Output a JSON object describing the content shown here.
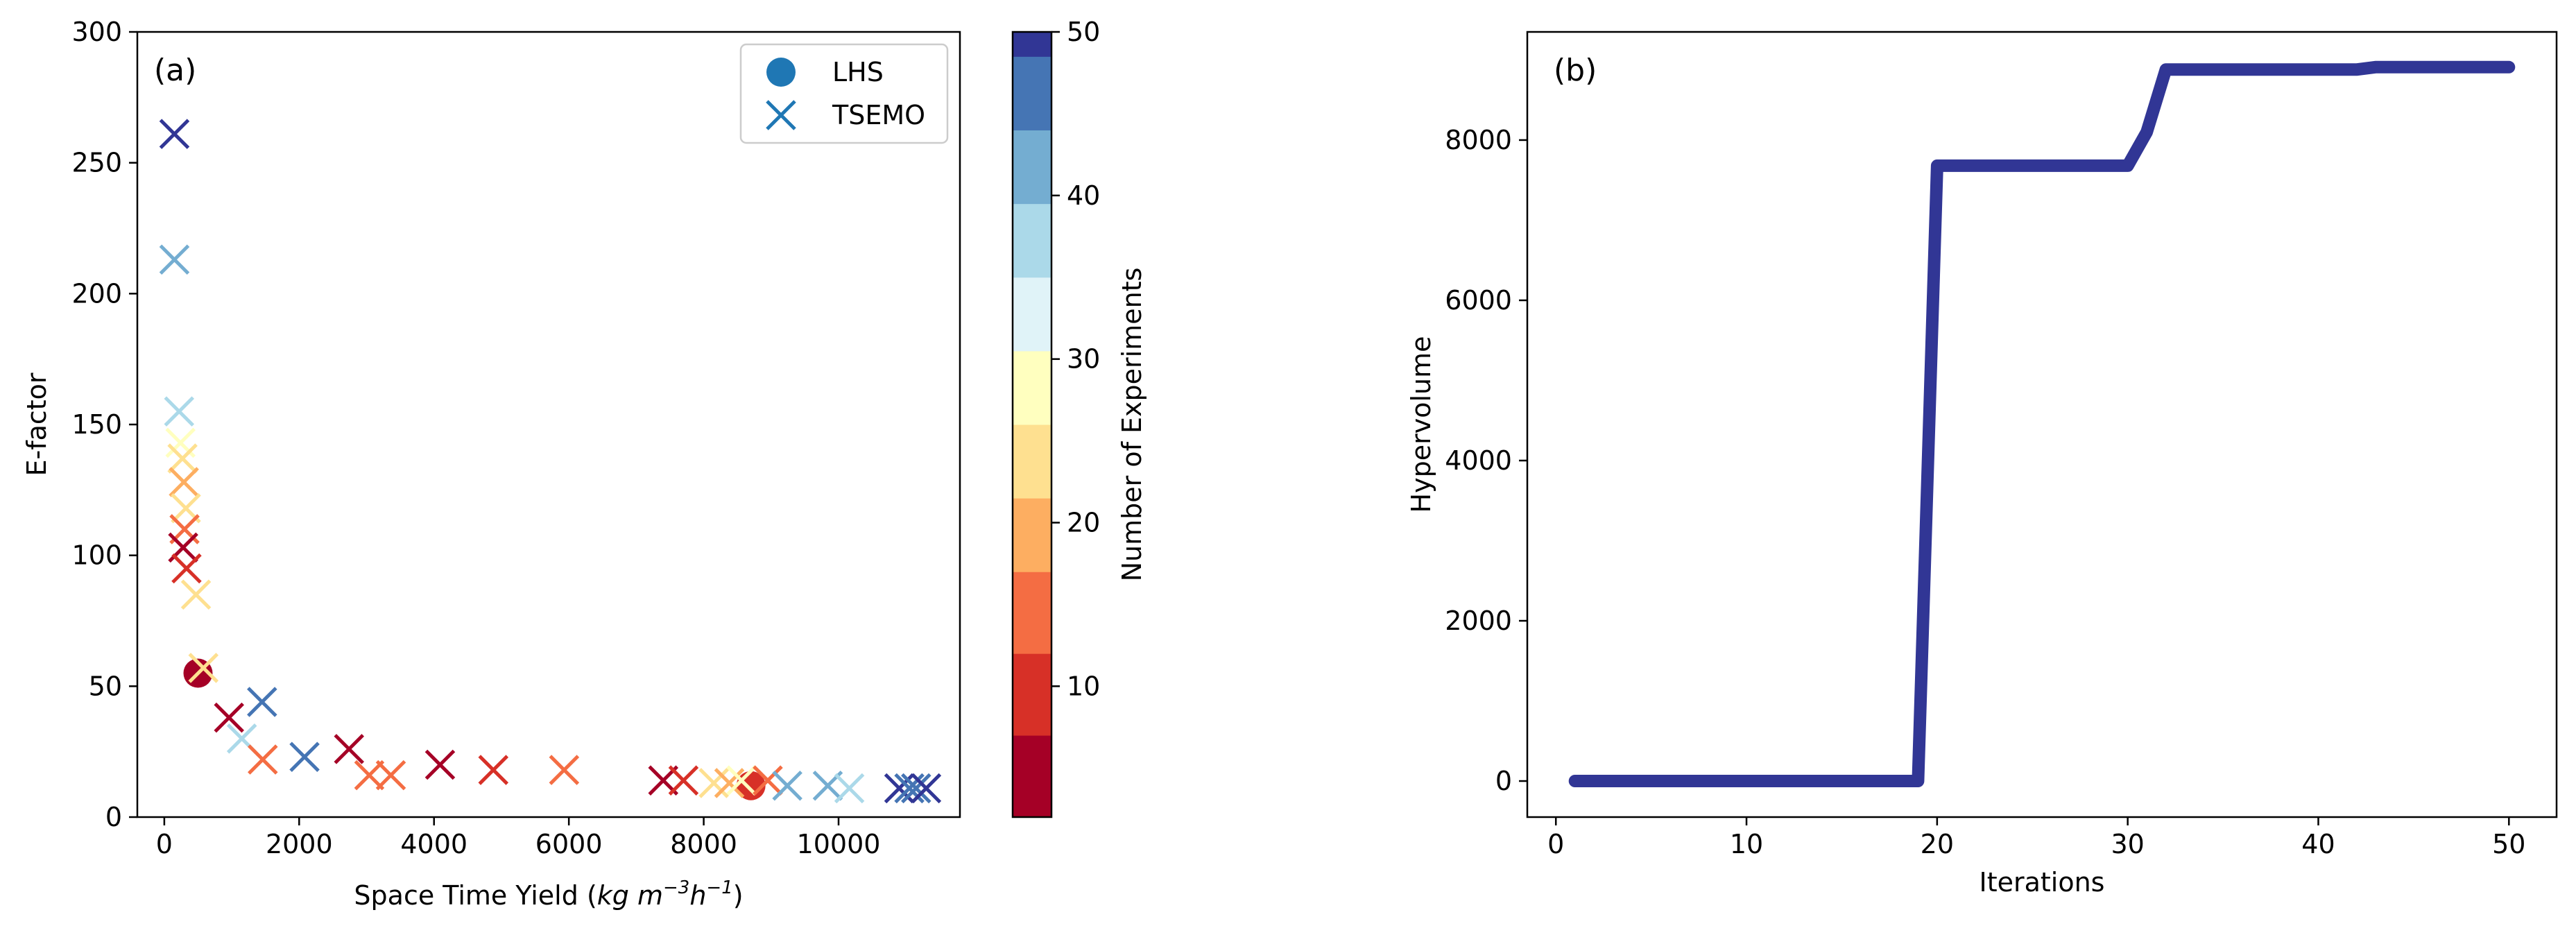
{
  "chart_data": [
    {
      "type": "scatter",
      "panel_label": "(a)",
      "xlabel": "Space Time Yield ",
      "xlabel_unit_html": "(kg m⁻³h⁻¹)",
      "xlabel_unit_parts": [
        "(",
        "kg m",
        "−3",
        "h",
        "−1",
        ")"
      ],
      "ylabel": "E-factor",
      "xlim": [
        -400,
        11800
      ],
      "ylim": [
        0,
        300
      ],
      "xticks": [
        0,
        2000,
        4000,
        6000,
        8000,
        10000
      ],
      "yticks": [
        0,
        50,
        100,
        150,
        200,
        250,
        300
      ],
      "legend": {
        "placement": "top-right",
        "entries": [
          {
            "label": "LHS",
            "marker": "circle",
            "color": "#1f77b4"
          },
          {
            "label": "TSEMO",
            "marker": "x",
            "color": "#1f77b4"
          }
        ]
      },
      "colorbar": {
        "label": "Number of Experiments",
        "range": [
          2,
          50
        ],
        "ticks": [
          10,
          20,
          30,
          40,
          50
        ],
        "bins": [
          {
            "from": 2,
            "to": 7,
            "color": "#a50026"
          },
          {
            "from": 7,
            "to": 12,
            "color": "#d73027"
          },
          {
            "from": 12,
            "to": 17,
            "color": "#f46d43"
          },
          {
            "from": 17,
            "to": 21.5,
            "color": "#fdae61"
          },
          {
            "from": 21.5,
            "to": 26,
            "color": "#fee090"
          },
          {
            "from": 26,
            "to": 30.5,
            "color": "#ffffbf"
          },
          {
            "from": 30.5,
            "to": 35,
            "color": "#e0f3f8"
          },
          {
            "from": 35,
            "to": 39.5,
            "color": "#abd9e9"
          },
          {
            "from": 39.5,
            "to": 44,
            "color": "#74add1"
          },
          {
            "from": 44,
            "to": 48.5,
            "color": "#4575b4"
          },
          {
            "from": 48.5,
            "to": 50,
            "color": "#313695"
          }
        ]
      },
      "series": [
        {
          "name": "LHS",
          "marker": "circle",
          "points": [
            {
              "x": 500,
              "y": 55,
              "n": 2
            },
            {
              "x": 8700,
              "y": 12,
              "n": 9
            }
          ]
        },
        {
          "name": "TSEMO",
          "marker": "x",
          "points": [
            {
              "x": 150,
              "y": 261,
              "n": 50
            },
            {
              "x": 150,
              "y": 213,
              "n": 42
            },
            {
              "x": 220,
              "y": 155,
              "n": 36
            },
            {
              "x": 240,
              "y": 143,
              "n": 28
            },
            {
              "x": 270,
              "y": 137,
              "n": 25
            },
            {
              "x": 290,
              "y": 128,
              "n": 18
            },
            {
              "x": 320,
              "y": 118,
              "n": 23
            },
            {
              "x": 300,
              "y": 110,
              "n": 16
            },
            {
              "x": 280,
              "y": 103,
              "n": 3
            },
            {
              "x": 330,
              "y": 95,
              "n": 12
            },
            {
              "x": 470,
              "y": 85,
              "n": 22
            },
            {
              "x": 580,
              "y": 57,
              "n": 25
            },
            {
              "x": 960,
              "y": 38,
              "n": 4
            },
            {
              "x": 1150,
              "y": 30,
              "n": 38
            },
            {
              "x": 1450,
              "y": 44,
              "n": 46
            },
            {
              "x": 1460,
              "y": 22,
              "n": 15
            },
            {
              "x": 2080,
              "y": 23,
              "n": 47
            },
            {
              "x": 2740,
              "y": 26,
              "n": 5
            },
            {
              "x": 3040,
              "y": 16,
              "n": 14
            },
            {
              "x": 3360,
              "y": 16,
              "n": 13
            },
            {
              "x": 4090,
              "y": 20,
              "n": 6
            },
            {
              "x": 4880,
              "y": 18,
              "n": 11
            },
            {
              "x": 5930,
              "y": 18,
              "n": 15
            },
            {
              "x": 7400,
              "y": 14,
              "n": 4
            },
            {
              "x": 7700,
              "y": 14,
              "n": 10
            },
            {
              "x": 8150,
              "y": 13,
              "n": 26
            },
            {
              "x": 8380,
              "y": 13,
              "n": 21
            },
            {
              "x": 8560,
              "y": 14,
              "n": 30
            },
            {
              "x": 8950,
              "y": 14,
              "n": 14
            },
            {
              "x": 9240,
              "y": 12,
              "n": 44
            },
            {
              "x": 9840,
              "y": 12,
              "n": 40
            },
            {
              "x": 10160,
              "y": 11,
              "n": 37
            },
            {
              "x": 10900,
              "y": 11,
              "n": 50
            },
            {
              "x": 11050,
              "y": 11,
              "n": 46
            },
            {
              "x": 11150,
              "y": 11,
              "n": 48
            },
            {
              "x": 11300,
              "y": 11,
              "n": 50
            }
          ]
        }
      ]
    },
    {
      "type": "line",
      "panel_label": "(b)",
      "xlabel": "Iterations",
      "ylabel": "Hypervolume",
      "xlim": [
        -1.5,
        52.5
      ],
      "ylim": [
        -450,
        9350
      ],
      "xticks": [
        0,
        10,
        20,
        30,
        40,
        50
      ],
      "yticks": [
        0,
        2000,
        4000,
        6000,
        8000
      ],
      "line_color": "#313695",
      "x": [
        1,
        19,
        20,
        30,
        31,
        32,
        42,
        43,
        50
      ],
      "y": [
        0,
        0,
        7680,
        7680,
        8100,
        8880,
        8880,
        8910,
        8910
      ]
    }
  ]
}
